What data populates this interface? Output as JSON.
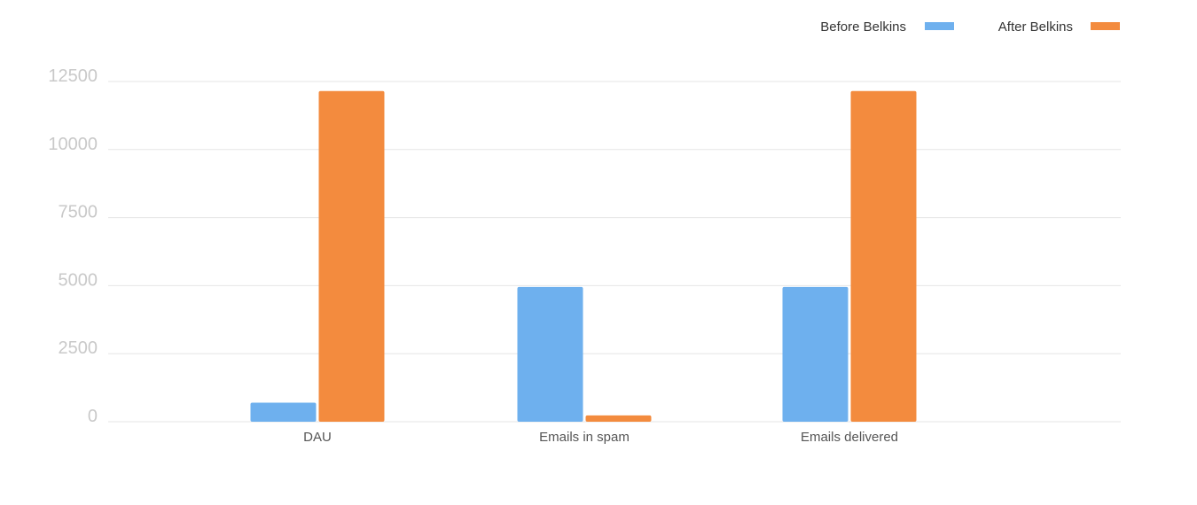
{
  "chart_data": {
    "type": "bar",
    "categories": [
      "DAU",
      "Emails in spam",
      "Emails delivered"
    ],
    "series": [
      {
        "name": "Before Belkins",
        "color": "#6eb0ee",
        "values": [
          700,
          4950,
          4950
        ]
      },
      {
        "name": "After Belkins",
        "color": "#f38b3e",
        "values": [
          12150,
          230,
          12150
        ]
      }
    ],
    "yticks": [
      "0",
      "2500",
      "5000",
      "7500",
      "10000",
      "12500"
    ],
    "ylim": [
      0,
      12500
    ],
    "grid": true,
    "legend_position": "top-right"
  }
}
